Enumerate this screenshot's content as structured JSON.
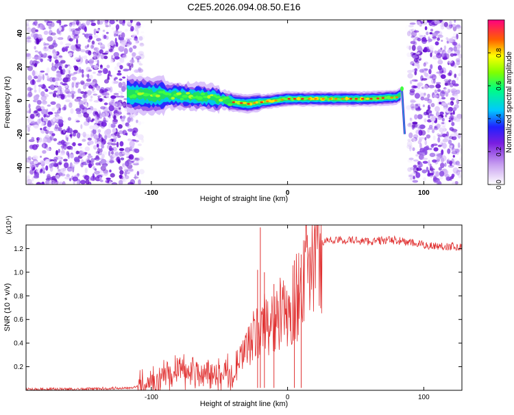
{
  "title": "C2E5.2026.094.08.50.E16",
  "chart_data": [
    {
      "type": "heatmap",
      "name": "spectrogram",
      "xlabel": "Height of straight line (km)",
      "ylabel": "Frequency (Hz)",
      "xlim": [
        -192,
        128
      ],
      "ylim": [
        -50,
        48
      ],
      "xticks": [
        "-100",
        "0",
        "100"
      ],
      "yticks": [
        "40",
        "20",
        "0",
        "-20",
        "-40"
      ],
      "colorbar": {
        "label": "Normalized spectral amplitude",
        "range": [
          0,
          1
        ],
        "ticks": [
          "0.0",
          "0.2",
          "0.4",
          "0.6",
          "0.8"
        ]
      },
      "noise_regions": [
        [
          -192,
          -106
        ],
        [
          88,
          128
        ]
      ],
      "signal_ridge": {
        "x": [
          -118,
          -100,
          -80,
          -60,
          -50,
          -40,
          -30,
          -20,
          -10,
          0,
          20,
          40,
          60,
          80,
          84
        ],
        "y": [
          4,
          3,
          3,
          2,
          1,
          -1,
          -2,
          -1,
          0,
          1,
          1,
          1,
          1,
          2,
          4
        ]
      },
      "tail": {
        "x": [
          84,
          86
        ],
        "y": [
          6,
          -20
        ]
      }
    },
    {
      "type": "line",
      "name": "snr",
      "xlabel": "Height of straight line (km)",
      "ylabel": "SNR (10 * v/v)",
      "scale_label": "(x10⁴)",
      "xlim": [
        -192,
        128
      ],
      "ylim": [
        0,
        1.4
      ],
      "xticks": [
        "-100",
        "0",
        "100"
      ],
      "yticks": [
        "0.2",
        "0.4",
        "0.6",
        "0.8",
        "1.0",
        "1.2"
      ],
      "color": "#e03030",
      "series": {
        "x": [
          -192,
          -150,
          -120,
          -110,
          -100,
          -90,
          -80,
          -70,
          -60,
          -50,
          -40,
          -35,
          -30,
          -25,
          -20,
          -15,
          -10,
          -5,
          0,
          5,
          10,
          15,
          20,
          25,
          30,
          40,
          50,
          60,
          70,
          80,
          90,
          100,
          110,
          120,
          128
        ],
        "y": [
          0.01,
          0.01,
          0.02,
          0.03,
          0.06,
          0.12,
          0.18,
          0.15,
          0.14,
          0.15,
          0.14,
          0.25,
          0.35,
          0.45,
          0.5,
          0.6,
          0.55,
          0.65,
          0.6,
          0.75,
          0.9,
          1.05,
          1.2,
          1.26,
          1.27,
          1.27,
          1.27,
          1.26,
          1.27,
          1.27,
          1.25,
          1.23,
          1.22,
          1.22,
          1.21
        ]
      },
      "spikes": {
        "x": [
          -22,
          -20,
          -17,
          -10,
          10,
          5
        ],
        "y": [
          1.02,
          1.38,
          1.0,
          0.9,
          1.15,
          1.1
        ]
      }
    }
  ]
}
